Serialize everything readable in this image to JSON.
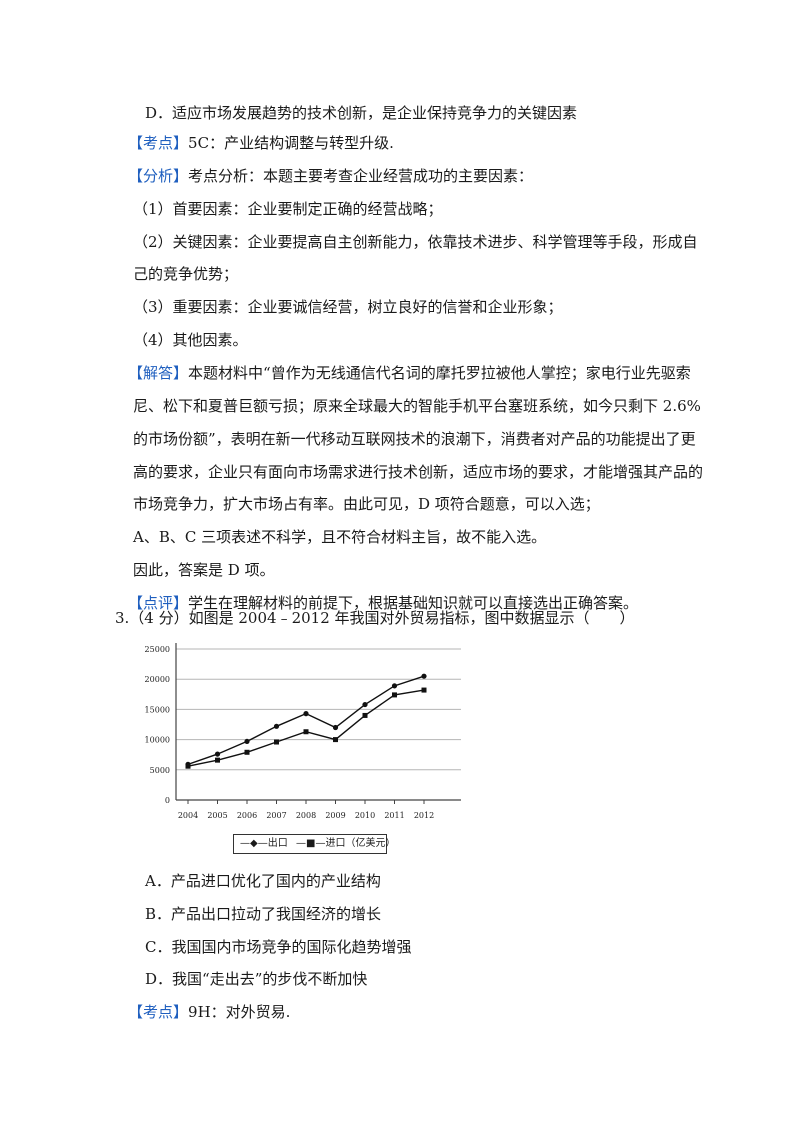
{
  "lines": {
    "d_option": "D．适应市场发展趋势的技术创新，是企业保持竞争力的关键因素",
    "kaodian_tag": "考点",
    "kaodian_text": "5C：产业结构调整与转型升级.",
    "fenxi_tag": "分析",
    "fenxi_text": "考点分析：本题主要考查企业经营成功的主要因素：",
    "item1": "（1）首要因素：企业要制定正确的经营战略；",
    "item2a": "（2）关键因素：企业要提高自主创新能力，依靠技术进步、科学管理等手段，形成自",
    "item2b": "己的竞争优势；",
    "item3": "（3）重要因素：企业要诚信经营，树立良好的信誉和企业形象；",
    "item4": "（4）其他因素。",
    "jieda_tag": "解答",
    "jieda_1": "本题材料中“曾作为无线通信代名词的摩托罗拉被他人掌控；家电行业先驱索",
    "jieda_2": "尼、松下和夏普巨额亏损；原来全球最大的智能手机平台塞班系统，如今只剩下 2.6%",
    "jieda_3": "的市场份额”，表明在新一代移动互联网技术的浪潮下，消费者对产品的功能提出了更",
    "jieda_4": "高的要求，企业只有面向市场需求进行技术创新，适应市场的要求，才能增强其产品的",
    "jieda_5": "市场竞争力，扩大市场占有率。由此可见，D 项符合题意，可以入选；",
    "abc": "A、B、C 三项表述不科学，且不符合材料主旨，故不能入选。",
    "answer": "因此，答案是 D 项。",
    "dianping_tag": "点评",
    "dianping_text": "学生在理解材料的前提下，根据基础知识就可以直接选出正确答案。",
    "q3": "3.（4 分）如图是 2004﹣2012 年我国对外贸易指标，图中数据显示（　　）",
    "optA": "A．产品进口优化了国内的产业结构",
    "optB": "B．产品出口拉动了我国经济的增长",
    "optC": "C．我国国内市场竞争的国际化趋势增强",
    "optD": "D．我国“走出去”的步伐不断加快",
    "kaodian2_tag": "考点",
    "kaodian2_text": "9H：对外贸易."
  },
  "chart_data": {
    "type": "line",
    "x": [
      "2004",
      "2005",
      "2006",
      "2007",
      "2008",
      "2009",
      "2010",
      "2011",
      "2012"
    ],
    "series": [
      {
        "name": "出口",
        "values": [
          5900,
          7600,
          9700,
          12200,
          14300,
          12000,
          15800,
          18900,
          20500
        ]
      },
      {
        "name": "进口（亿美元）",
        "values": [
          5600,
          6600,
          7900,
          9600,
          11300,
          10000,
          14000,
          17400,
          18200
        ]
      }
    ],
    "ylim": [
      0,
      25000
    ],
    "yticks": [
      "0",
      "5000",
      "10000",
      "15000",
      "20000",
      "25000"
    ],
    "grid": true,
    "legend_position": "bottom"
  },
  "colors": {
    "tag": "#1f5fbf",
    "text": "#1a1a1a",
    "line": "#111111"
  }
}
